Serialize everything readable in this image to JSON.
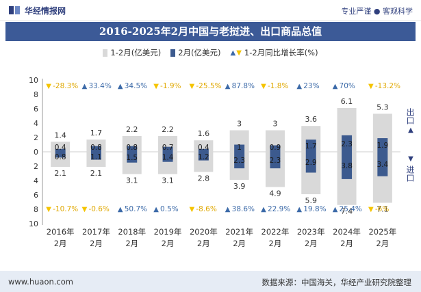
{
  "header": {
    "brand": "华经情报网",
    "tagline": "专业严谨 ● 客观科学"
  },
  "footer": {
    "website": "www.huaon.com",
    "source": "数据来源：中国海关，华经产业研究院整理"
  },
  "side_labels": {
    "export": "出口",
    "import": "进口"
  },
  "colors": {
    "title_bg": "#3c5a97",
    "cumulative_bar": "#d9d9d9",
    "month_bar": "#3c5a8e",
    "up_arrow": "#3c6aa8",
    "down_arrow": "#f5c400",
    "footer_bg": "#e6ecf5"
  },
  "chart_data": {
    "type": "bar",
    "title": "2016-2025年2月中国与老挝进、出口商品总值",
    "categories": [
      "2016年\n2月",
      "2017年\n2月",
      "2018年\n2月",
      "2019年\n2月",
      "2020年\n2月",
      "2021年\n2月",
      "2022年\n2月",
      "2023年\n2月",
      "2024年\n2月",
      "2025年\n2月"
    ],
    "legend": [
      "1-2月(亿美元)",
      "2月(亿美元)",
      "1-2月同比增长率(%)"
    ],
    "y_ticks_top": [
      "10",
      "8",
      "6",
      "4",
      "2",
      "0"
    ],
    "y_ticks_bottom": [
      "2",
      "4",
      "6",
      "8",
      "10"
    ],
    "ylim_export": [
      0,
      10
    ],
    "ylim_import": [
      0,
      10
    ],
    "export": {
      "cumulative": [
        1.4,
        1.7,
        2.2,
        2.2,
        1.6,
        3,
        3,
        3.6,
        6.1,
        5.3
      ],
      "cumulative_labels": [
        "1.4",
        "1.7",
        "2.2",
        "2.2",
        "1.6",
        "3",
        "3",
        "3.6",
        "6.1",
        "5.3"
      ],
      "month": [
        0.4,
        0.8,
        0.8,
        0.7,
        0.4,
        1,
        0.9,
        1.7,
        2.3,
        1.9
      ],
      "month_labels": [
        "0.4",
        "0.8",
        "0.8",
        "0.7",
        "0.4",
        "1",
        "0.9",
        "1.7",
        "2.3",
        "1.9"
      ],
      "growth": [
        -28.3,
        33.4,
        34.5,
        -1.9,
        -25.5,
        87.8,
        -1.8,
        23,
        70,
        -13.2
      ],
      "growth_labels": [
        "-28.3%",
        "33.4%",
        "34.5%",
        "-1.9%",
        "-25.5%",
        "87.8%",
        "-1.8%",
        "23%",
        "70%",
        "-13.2%"
      ]
    },
    "import": {
      "cumulative": [
        2.1,
        2.1,
        3.1,
        3.1,
        2.8,
        3.9,
        4.9,
        5.9,
        7.4,
        7.1
      ],
      "cumulative_labels": [
        "2.1",
        "2.1",
        "3.1",
        "3.1",
        "2.8",
        "3.9",
        "4.9",
        "5.9",
        "7.4",
        "7.1"
      ],
      "month": [
        0.8,
        1.1,
        1.5,
        1.4,
        1.2,
        2.3,
        2.3,
        2.9,
        3.8,
        3.4
      ],
      "month_labels": [
        "0.8",
        "1.1",
        "1.5",
        "1.4",
        "1.2",
        "2.3",
        "2.3",
        "2.9",
        "3.8",
        "3.4"
      ],
      "growth": [
        -10.7,
        -0.6,
        50.7,
        0.5,
        -8.6,
        38.6,
        22.9,
        19.8,
        25.4,
        -6
      ],
      "growth_labels": [
        "-10.7%",
        "-0.6%",
        "50.7%",
        "0.5%",
        "-8.6%",
        "38.6%",
        "22.9%",
        "19.8%",
        "25.4%",
        "-6%"
      ]
    }
  }
}
